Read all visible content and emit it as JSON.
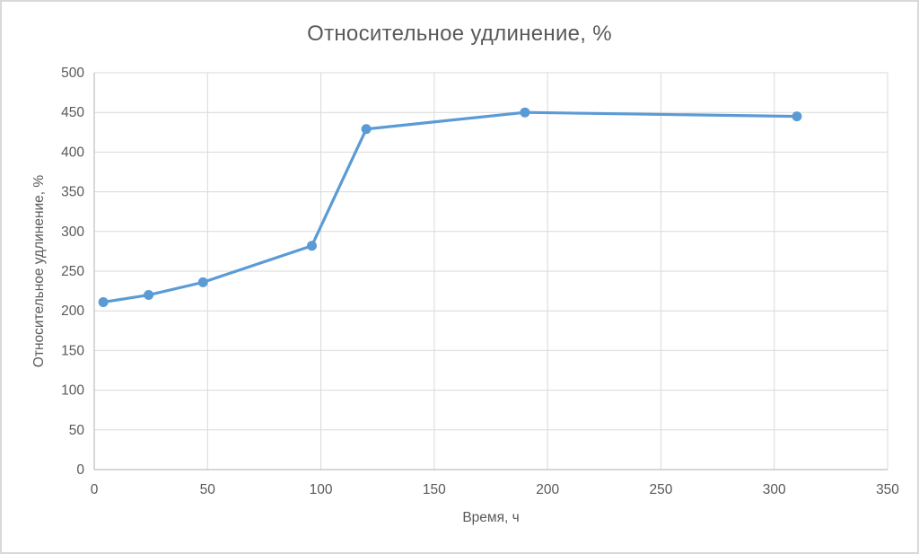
{
  "chart_data": {
    "type": "line",
    "title": "Относительное удлинение, %",
    "xlabel": "Время, ч",
    "ylabel": "Относительное удлинение, %",
    "x": [
      4,
      24,
      48,
      96,
      120,
      190,
      310
    ],
    "y": [
      211,
      220,
      236,
      282,
      429,
      450,
      445
    ],
    "xlim": [
      0,
      350
    ],
    "ylim": [
      0,
      500
    ],
    "x_ticks": [
      0,
      50,
      100,
      150,
      200,
      250,
      300,
      350
    ],
    "y_ticks": [
      0,
      50,
      100,
      150,
      200,
      250,
      300,
      350,
      400,
      450,
      500
    ],
    "grid": true,
    "legend_position": "none",
    "marker": "circle",
    "colors": {
      "series": "#5b9bd5",
      "text": "#595959",
      "gridline": "#d9d9d9",
      "axis_line": "#bfbfbf",
      "background": "#ffffff",
      "frame_border": "#d9d9d9"
    }
  }
}
